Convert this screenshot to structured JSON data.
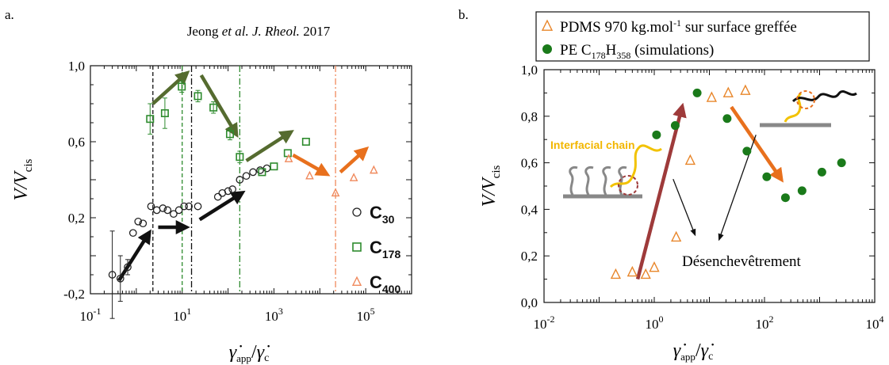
{
  "panel_a": {
    "label": "a.",
    "citation": {
      "author": "Jeong",
      "etal": "et al.",
      "journal": "J. Rheol.",
      "year": "2017"
    },
    "ylabel": {
      "main": "V/V",
      "sub": "cis"
    },
    "xlabel": {
      "gamma": "γ̇",
      "app": "app",
      "slash": "/",
      "c": "c"
    },
    "xtick_labels": [
      {
        "base": "10",
        "exp": "-1",
        "value": 0.1
      },
      {
        "base": "10",
        "exp": "1",
        "value": 10
      },
      {
        "base": "10",
        "exp": "3",
        "value": 1000
      },
      {
        "base": "10",
        "exp": "5",
        "value": 100000
      }
    ],
    "ytick_labels": [
      {
        "text": "-0,2",
        "value": -0.2
      },
      {
        "text": "0,2",
        "value": 0.2
      },
      {
        "text": "0,6",
        "value": 0.6
      },
      {
        "text": "1,0",
        "value": 1.0
      }
    ],
    "legend": [
      {
        "base": "C",
        "sub": "30",
        "marker": "circle",
        "color": "#222222"
      },
      {
        "base": "C",
        "sub": "178",
        "marker": "square",
        "color": "#2e8b2e"
      },
      {
        "base": "C",
        "sub": "400",
        "marker": "triangle",
        "color": "#f08a5d"
      }
    ]
  },
  "panel_b": {
    "label": "b.",
    "ylabel": {
      "main": "V/V",
      "sub": "cis"
    },
    "xlabel": {
      "gamma": "γ̇",
      "app": "app",
      "slash": "/",
      "c": "c"
    },
    "xtick_labels": [
      {
        "base": "10",
        "exp": "-2",
        "value": 0.01
      },
      {
        "base": "10",
        "exp": "0",
        "value": 1
      },
      {
        "base": "10",
        "exp": "2",
        "value": 100
      },
      {
        "base": "10",
        "exp": "4",
        "value": 10000
      }
    ],
    "ytick_labels": [
      {
        "text": "0,0",
        "value": 0.0
      },
      {
        "text": "0,2",
        "value": 0.2
      },
      {
        "text": "0,4",
        "value": 0.4
      },
      {
        "text": "0,6",
        "value": 0.6
      },
      {
        "text": "0,8",
        "value": 0.8
      },
      {
        "text": "1,0",
        "value": 1.0
      }
    ],
    "legend": [
      {
        "pre": "PDMS 970 kg.mol",
        "sup": "-1",
        "post": " sur surface greffée",
        "marker": "triangle",
        "color": "#e8862a"
      },
      {
        "pre": "PE C",
        "sub1": "178",
        "mid": "H",
        "sub2": "358",
        "post": " (simulations)",
        "marker": "circle",
        "color": "#1a7a1a"
      }
    ],
    "annotations": {
      "interfacial_chain": "Interfacial chain",
      "disentanglement": "Désenchevêtrement"
    }
  },
  "chart_data": [
    {
      "type": "scatter",
      "panel": "a",
      "title": "Jeong et al. J. Rheol. 2017",
      "xlabel": "γ̇app/γ̇c",
      "ylabel": "V/Vcis",
      "xscale": "log",
      "xlim": [
        0.1,
        1000000
      ],
      "ylim": [
        -0.2,
        1.0
      ],
      "legend_position": "right",
      "series": [
        {
          "name": "C30",
          "marker": "circle",
          "color": "#222222",
          "x": [
            0.3,
            0.45,
            0.65,
            0.85,
            1.1,
            1.4,
            2.1,
            2.8,
            3.8,
            4.8,
            6.5,
            8.5,
            11,
            14,
            22,
            60,
            75,
            100,
            125,
            180,
            250,
            350,
            500,
            700
          ],
          "y": [
            -0.1,
            -0.12,
            -0.06,
            0.12,
            0.18,
            0.17,
            0.26,
            0.24,
            0.25,
            0.24,
            0.22,
            0.24,
            0.26,
            0.26,
            0.26,
            0.31,
            0.33,
            0.34,
            0.35,
            0.4,
            0.42,
            0.44,
            0.45,
            0.46
          ],
          "err": [
            0.23,
            0.12,
            0.04,
            0.02,
            0.02,
            0.02,
            0.02,
            0.02,
            0.02,
            0.02,
            0.02,
            0.02,
            0.02,
            0.02,
            0.02,
            0.02,
            0.02,
            0.02,
            0.02,
            0.02,
            0.02,
            0.02,
            0.02,
            0.02
          ]
        },
        {
          "name": "C178",
          "marker": "square",
          "color": "#2e8b2e",
          "x": [
            2.0,
            4.2,
            9.8,
            22,
            48,
            110,
            180,
            550,
            1000,
            2000,
            5000
          ],
          "y": [
            0.72,
            0.75,
            0.89,
            0.84,
            0.78,
            0.64,
            0.52,
            0.44,
            0.47,
            0.54,
            0.6
          ],
          "err": [
            0.08,
            0.08,
            0.03,
            0.03,
            0.03,
            0.03,
            0.03,
            0.02,
            0.02,
            0.02,
            0.02
          ]
        },
        {
          "name": "C400",
          "marker": "triangle",
          "color": "#f08a5d",
          "x": [
            2100,
            6000,
            22000,
            55000,
            150000
          ],
          "y": [
            0.51,
            0.42,
            0.33,
            0.41,
            0.45
          ],
          "err": [
            0.02,
            0.02,
            0.02,
            0.02,
            0.02
          ]
        }
      ],
      "vertical_lines": [
        {
          "x": 2.3,
          "style": "dashed",
          "color": "#111111"
        },
        {
          "x": 16,
          "style": "dashdot",
          "color": "#111111"
        },
        {
          "x": 10,
          "style": "dashed",
          "color": "#2e8b2e"
        },
        {
          "x": 180,
          "style": "dashdot",
          "color": "#2e8b2e"
        },
        {
          "x": 22000,
          "style": "dashdot",
          "color": "#f08a5d"
        }
      ],
      "arrows": [
        {
          "from": [
            0.42,
            -0.13
          ],
          "to": [
            1.9,
            0.12
          ],
          "color": "#111111"
        },
        {
          "from": [
            3,
            0.15
          ],
          "to": [
            12,
            0.15
          ],
          "color": "#111111"
        },
        {
          "from": [
            24,
            0.19
          ],
          "to": [
            200,
            0.33
          ],
          "color": "#111111"
        },
        {
          "from": [
            2.3,
            0.8
          ],
          "to": [
            12.5,
            0.96
          ],
          "color": "#556b2f"
        },
        {
          "from": [
            26,
            0.95
          ],
          "to": [
            150,
            0.64
          ],
          "color": "#556b2f"
        },
        {
          "from": [
            250,
            0.5
          ],
          "to": [
            2300,
            0.65
          ],
          "color": "#556b2f"
        },
        {
          "from": [
            2600,
            0.53
          ],
          "to": [
            14000,
            0.43
          ],
          "color": "#e8701d"
        },
        {
          "from": [
            28000,
            0.44
          ],
          "to": [
            100000,
            0.56
          ],
          "color": "#e8701d"
        }
      ]
    },
    {
      "type": "scatter",
      "panel": "b",
      "title": "",
      "xlabel": "γ̇app/γ̇c",
      "ylabel": "V/Vcis",
      "xscale": "log",
      "xlim": [
        0.01,
        10000
      ],
      "ylim": [
        0.0,
        1.0
      ],
      "legend_position": "top",
      "series": [
        {
          "name": "PDMS 970 kg.mol-1 sur surface greffée",
          "marker": "triangle",
          "color": "#e8862a",
          "x": [
            0.2,
            0.4,
            0.7,
            1.0,
            2.5,
            4.5,
            11,
            22,
            45
          ],
          "y": [
            0.12,
            0.13,
            0.12,
            0.15,
            0.28,
            0.61,
            0.88,
            0.9,
            0.91
          ]
        },
        {
          "name": "PE C178H358 (simulations)",
          "marker": "circle",
          "color": "#1a7a1a",
          "x": [
            1.1,
            2.4,
            6,
            21,
            48,
            110,
            240,
            480,
            1100,
            2500
          ],
          "y": [
            0.72,
            0.76,
            0.9,
            0.79,
            0.65,
            0.54,
            0.45,
            0.48,
            0.56,
            0.6
          ]
        }
      ],
      "arrows": [
        {
          "from": [
            0.5,
            0.1
          ],
          "to": [
            3.2,
            0.84
          ],
          "color": "#9e3a3a"
        },
        {
          "from": [
            25,
            0.84
          ],
          "to": [
            200,
            0.53
          ],
          "color": "#e8701d"
        },
        {
          "from": [
            2.2,
            0.53
          ],
          "to": [
            5.5,
            0.29
          ],
          "color": "#111111"
        },
        {
          "from": [
            70,
            0.72
          ],
          "to": [
            15,
            0.27
          ],
          "color": "#111111"
        }
      ]
    }
  ]
}
